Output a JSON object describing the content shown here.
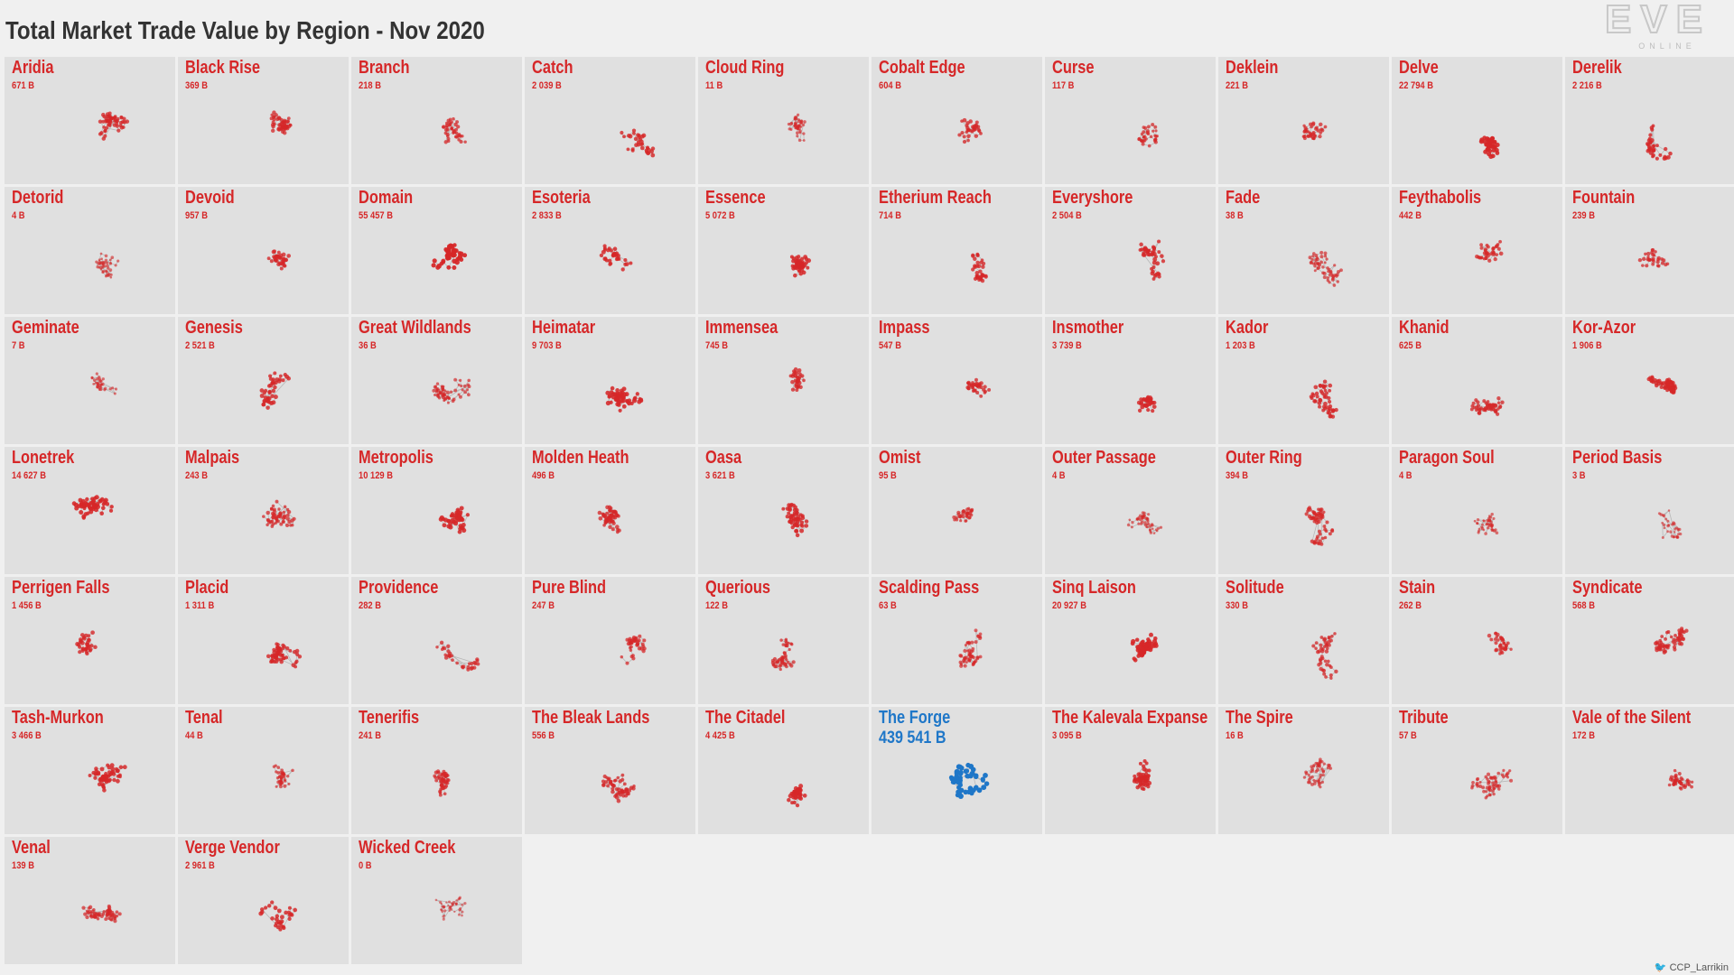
{
  "title": "Total Market Trade Value by Region - Nov 2020",
  "logo": {
    "top": "EVE",
    "bottom": "ONLINE"
  },
  "credit": "CCP_Larrikin",
  "colors": {
    "normal": "#d62728",
    "highlight": "#1f77c8",
    "link": "#b8b8b8"
  },
  "chart_data": {
    "type": "small-multiples",
    "unit": "B",
    "columns": 10,
    "highlight": "The Forge",
    "regions": [
      {
        "name": "Aridia",
        "value": 671,
        "label": "671 B"
      },
      {
        "name": "Black Rise",
        "value": 369,
        "label": "369 B"
      },
      {
        "name": "Branch",
        "value": 218,
        "label": "218 B"
      },
      {
        "name": "Catch",
        "value": 2039,
        "label": "2 039 B"
      },
      {
        "name": "Cloud Ring",
        "value": 11,
        "label": "11 B"
      },
      {
        "name": "Cobalt Edge",
        "value": 604,
        "label": "604 B"
      },
      {
        "name": "Curse",
        "value": 117,
        "label": "117 B"
      },
      {
        "name": "Deklein",
        "value": 221,
        "label": "221 B"
      },
      {
        "name": "Delve",
        "value": 22794,
        "label": "22 794 B"
      },
      {
        "name": "Derelik",
        "value": 2216,
        "label": "2 216 B"
      },
      {
        "name": "Detorid",
        "value": 4,
        "label": "4 B"
      },
      {
        "name": "Devoid",
        "value": 957,
        "label": "957 B"
      },
      {
        "name": "Domain",
        "value": 55457,
        "label": "55 457 B"
      },
      {
        "name": "Esoteria",
        "value": 2833,
        "label": "2 833 B"
      },
      {
        "name": "Essence",
        "value": 5072,
        "label": "5 072 B"
      },
      {
        "name": "Etherium Reach",
        "value": 714,
        "label": "714 B"
      },
      {
        "name": "Everyshore",
        "value": 2504,
        "label": "2 504 B"
      },
      {
        "name": "Fade",
        "value": 38,
        "label": "38 B"
      },
      {
        "name": "Feythabolis",
        "value": 442,
        "label": "442 B"
      },
      {
        "name": "Fountain",
        "value": 239,
        "label": "239 B"
      },
      {
        "name": "Geminate",
        "value": 7,
        "label": "7 B"
      },
      {
        "name": "Genesis",
        "value": 2521,
        "label": "2 521 B"
      },
      {
        "name": "Great Wildlands",
        "value": 36,
        "label": "36 B"
      },
      {
        "name": "Heimatar",
        "value": 9703,
        "label": "9 703 B"
      },
      {
        "name": "Immensea",
        "value": 745,
        "label": "745 B"
      },
      {
        "name": "Impass",
        "value": 547,
        "label": "547 B"
      },
      {
        "name": "Insmother",
        "value": 3739,
        "label": "3 739 B"
      },
      {
        "name": "Kador",
        "value": 1203,
        "label": "1 203 B"
      },
      {
        "name": "Khanid",
        "value": 625,
        "label": "625 B"
      },
      {
        "name": "Kor-Azor",
        "value": 1906,
        "label": "1 906 B"
      },
      {
        "name": "Lonetrek",
        "value": 14627,
        "label": "14 627 B"
      },
      {
        "name": "Malpais",
        "value": 243,
        "label": "243 B"
      },
      {
        "name": "Metropolis",
        "value": 10129,
        "label": "10 129 B"
      },
      {
        "name": "Molden Heath",
        "value": 496,
        "label": "496 B"
      },
      {
        "name": "Oasa",
        "value": 3621,
        "label": "3 621 B"
      },
      {
        "name": "Omist",
        "value": 95,
        "label": "95 B"
      },
      {
        "name": "Outer Passage",
        "value": 4,
        "label": "4 B"
      },
      {
        "name": "Outer Ring",
        "value": 394,
        "label": "394 B"
      },
      {
        "name": "Paragon Soul",
        "value": 4,
        "label": "4 B"
      },
      {
        "name": "Period Basis",
        "value": 3,
        "label": "3 B"
      },
      {
        "name": "Perrigen Falls",
        "value": 1456,
        "label": "1 456 B"
      },
      {
        "name": "Placid",
        "value": 1311,
        "label": "1 311 B"
      },
      {
        "name": "Providence",
        "value": 282,
        "label": "282 B"
      },
      {
        "name": "Pure Blind",
        "value": 247,
        "label": "247 B"
      },
      {
        "name": "Querious",
        "value": 122,
        "label": "122 B"
      },
      {
        "name": "Scalding Pass",
        "value": 63,
        "label": "63 B"
      },
      {
        "name": "Sinq Laison",
        "value": 20927,
        "label": "20 927 B"
      },
      {
        "name": "Solitude",
        "value": 330,
        "label": "330 B"
      },
      {
        "name": "Stain",
        "value": 262,
        "label": "262 B"
      },
      {
        "name": "Syndicate",
        "value": 568,
        "label": "568 B"
      },
      {
        "name": "Tash-Murkon",
        "value": 3466,
        "label": "3 466 B"
      },
      {
        "name": "Tenal",
        "value": 44,
        "label": "44 B"
      },
      {
        "name": "Tenerifis",
        "value": 241,
        "label": "241 B"
      },
      {
        "name": "The Bleak Lands",
        "value": 556,
        "label": "556 B"
      },
      {
        "name": "The Citadel",
        "value": 4425,
        "label": "4 425 B"
      },
      {
        "name": "The Forge",
        "value": 439541,
        "label": "439 541 B"
      },
      {
        "name": "The Kalevala Expanse",
        "value": 3095,
        "label": "3 095 B"
      },
      {
        "name": "The Spire",
        "value": 16,
        "label": "16 B"
      },
      {
        "name": "Tribute",
        "value": 57,
        "label": "57 B"
      },
      {
        "name": "Vale of the Silent",
        "value": 172,
        "label": "172 B"
      },
      {
        "name": "Venal",
        "value": 139,
        "label": "139 B"
      },
      {
        "name": "Verge Vendor",
        "value": 2961,
        "label": "2 961 B"
      },
      {
        "name": "Wicked Creek",
        "value": 0,
        "label": "0 B"
      }
    ]
  }
}
